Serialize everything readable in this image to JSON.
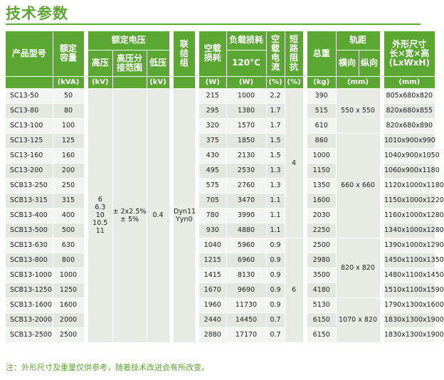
{
  "page": {
    "title": "技术参数"
  },
  "headers": {
    "model": "产品型号",
    "capacity": "额定容量",
    "rated_voltage": "额定电压",
    "hv": "高压",
    "tap_range": "高压分接范围",
    "lv": "低压",
    "vector_group": "联结组",
    "no_load_loss": "空载损耗",
    "load_loss": "负载损耗",
    "load_loss_temp": "120°C",
    "no_load_current": "空载电流",
    "impedance": "短路阻抗",
    "weight": "总重",
    "track_gauge": "轨距",
    "track_h": "横向",
    "track_v": "纵向",
    "dimensions": "外形尺寸",
    "dimensions_sub": "长×宽×高",
    "dimensions_unit": "(LxWxH)"
  },
  "units": {
    "capacity": "(kVA)",
    "voltage": "(kV)",
    "lv": "(kV)",
    "no_load_loss": "(W)",
    "load_loss": "(W)",
    "current": "(%)",
    "impedance": "(%)",
    "weight": "(kg)",
    "track": "(mm)",
    "dimensions": "(mm)"
  },
  "shared": {
    "hv_values": [
      "6",
      "6.3",
      "10",
      "10.5",
      "11"
    ],
    "tap_values": [
      "± 2x2.5%",
      "± 5%"
    ],
    "lv_value": "0.4",
    "vector_values": [
      "Dyn11",
      "Yyn0"
    ],
    "impedance_a": "4",
    "impedance_b": "6",
    "track_a": "550 x 550",
    "track_b": "660 x 660",
    "track_c": "820 x 820",
    "track_d": "1070 x 820"
  },
  "rows": [
    {
      "model": "SC13-50",
      "capacity": "50",
      "no_load": "215",
      "load": "1000",
      "current": "2.2",
      "weight": "390",
      "dims": "805x680x820"
    },
    {
      "model": "SC13-80",
      "capacity": "80",
      "no_load": "295",
      "load": "1380",
      "current": "1.7",
      "weight": "515",
      "dims": "820x680x855"
    },
    {
      "model": "SC13-100",
      "capacity": "100",
      "no_load": "320",
      "load": "1570",
      "current": "1.7",
      "weight": "610",
      "dims": "820x680x890"
    },
    {
      "model": "SC13-125",
      "capacity": "125",
      "no_load": "375",
      "load": "1850",
      "current": "1.5",
      "weight": "860",
      "dims": "1010x900x990"
    },
    {
      "model": "SC13-160",
      "capacity": "160",
      "no_load": "430",
      "load": "2130",
      "current": "1.5",
      "weight": "1000",
      "dims": "1040x900x1050"
    },
    {
      "model": "SC13-200",
      "capacity": "200",
      "no_load": "495",
      "load": "2530",
      "current": "1.3",
      "weight": "1150",
      "dims": "1060x900x1180"
    },
    {
      "model": "SCB13-250",
      "capacity": "250",
      "no_load": "575",
      "load": "2760",
      "current": "1.3",
      "weight": "1350",
      "dims": "1120x1000x1180"
    },
    {
      "model": "SCB13-315",
      "capacity": "315",
      "no_load": "705",
      "load": "3470",
      "current": "1.1",
      "weight": "1600",
      "dims": "1150x1000x1220"
    },
    {
      "model": "SCB13-400",
      "capacity": "400",
      "no_load": "780",
      "load": "3990",
      "current": "1.1",
      "weight": "2030",
      "dims": "1160x1000x1280"
    },
    {
      "model": "SCB13-500",
      "capacity": "500",
      "no_load": "930",
      "load": "4880",
      "current": "1.1",
      "weight": "2250",
      "dims": "1340x1000x1280"
    },
    {
      "model": "SCB13-630",
      "capacity": "630",
      "no_load": "1040",
      "load": "5960",
      "current": "0.9",
      "weight": "2500",
      "dims": "1390x1000x1290"
    },
    {
      "model": "SCB13-800",
      "capacity": "800",
      "no_load": "1215",
      "load": "6960",
      "current": "0.9",
      "weight": "2980",
      "dims": "1450x1100x1350"
    },
    {
      "model": "SCB13-1000",
      "capacity": "1000",
      "no_load": "1415",
      "load": "8130",
      "current": "0.9",
      "weight": "3500",
      "dims": "1480x1100x1450"
    },
    {
      "model": "SCB13-1250",
      "capacity": "1250",
      "no_load": "1670",
      "load": "9690",
      "current": "0.9",
      "weight": "4180",
      "dims": "1510x1100x1590"
    },
    {
      "model": "SCB13-1600",
      "capacity": "1600",
      "no_load": "1960",
      "load": "11730",
      "current": "0.9",
      "weight": "5130",
      "dims": "1790x1300x1600"
    },
    {
      "model": "SCB13-2000",
      "capacity": "2000",
      "no_load": "2440",
      "load": "14450",
      "current": "0.7",
      "weight": "6150",
      "dims": "1830x1300x1900"
    },
    {
      "model": "SCB13-2500",
      "capacity": "2500",
      "no_load": "2880",
      "load": "17170",
      "current": "0.7",
      "weight": "6150",
      "dims": "1830x1300x1900"
    }
  ],
  "footnote": "注：外形尺寸及重量仅供参考，随着技术改进会有所改变。"
}
